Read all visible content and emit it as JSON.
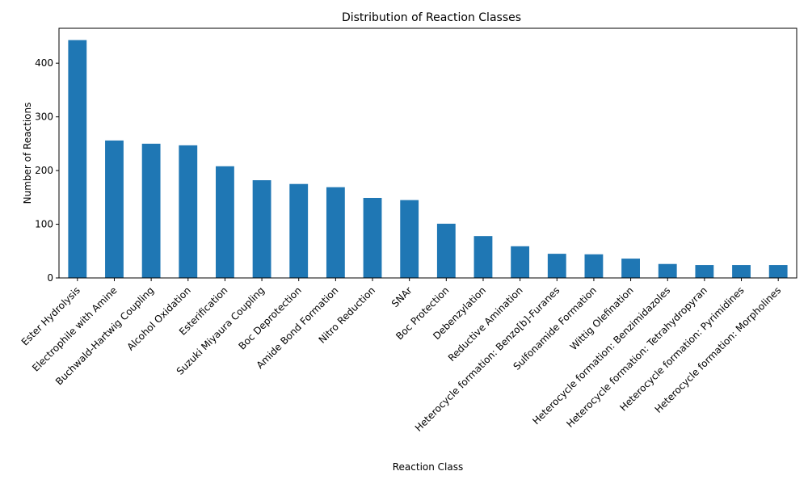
{
  "chart_data": {
    "type": "bar",
    "title": "Distribution of Reaction Classes",
    "xlabel": "Reaction Class",
    "ylabel": "Number of Reactions",
    "categories": [
      "Ester Hydrolysis",
      "Electrophile with Amine",
      "Buchwald-Hartwig Coupling",
      "Alcohol Oxidation",
      "Esterification",
      "Suzuki Miyaura Coupling",
      "Boc Deprotection",
      "Amide Bond Formation",
      "Nitro Reduction",
      "SNAr",
      "Boc Protection",
      "Debenzylation",
      "Reductive Amination",
      "Heterocycle formation: Benzo[b]-Furanes",
      "Sulfonamide Formation",
      "Wittig Olefination",
      "Heterocycle formation: Benzimidazoles",
      "Heterocycle formation: Tetrahydropyran",
      "Heterocycle formation: Pyrimidines",
      "Heterocycle formation: Morpholines"
    ],
    "values": [
      443,
      256,
      250,
      247,
      208,
      182,
      175,
      169,
      149,
      145,
      101,
      78,
      59,
      45,
      44,
      36,
      26,
      24,
      24,
      24
    ],
    "ylim": [
      0,
      465
    ],
    "yticks": [
      0,
      100,
      200,
      300,
      400
    ],
    "grid": false,
    "bar_color": "#1f77b4"
  }
}
